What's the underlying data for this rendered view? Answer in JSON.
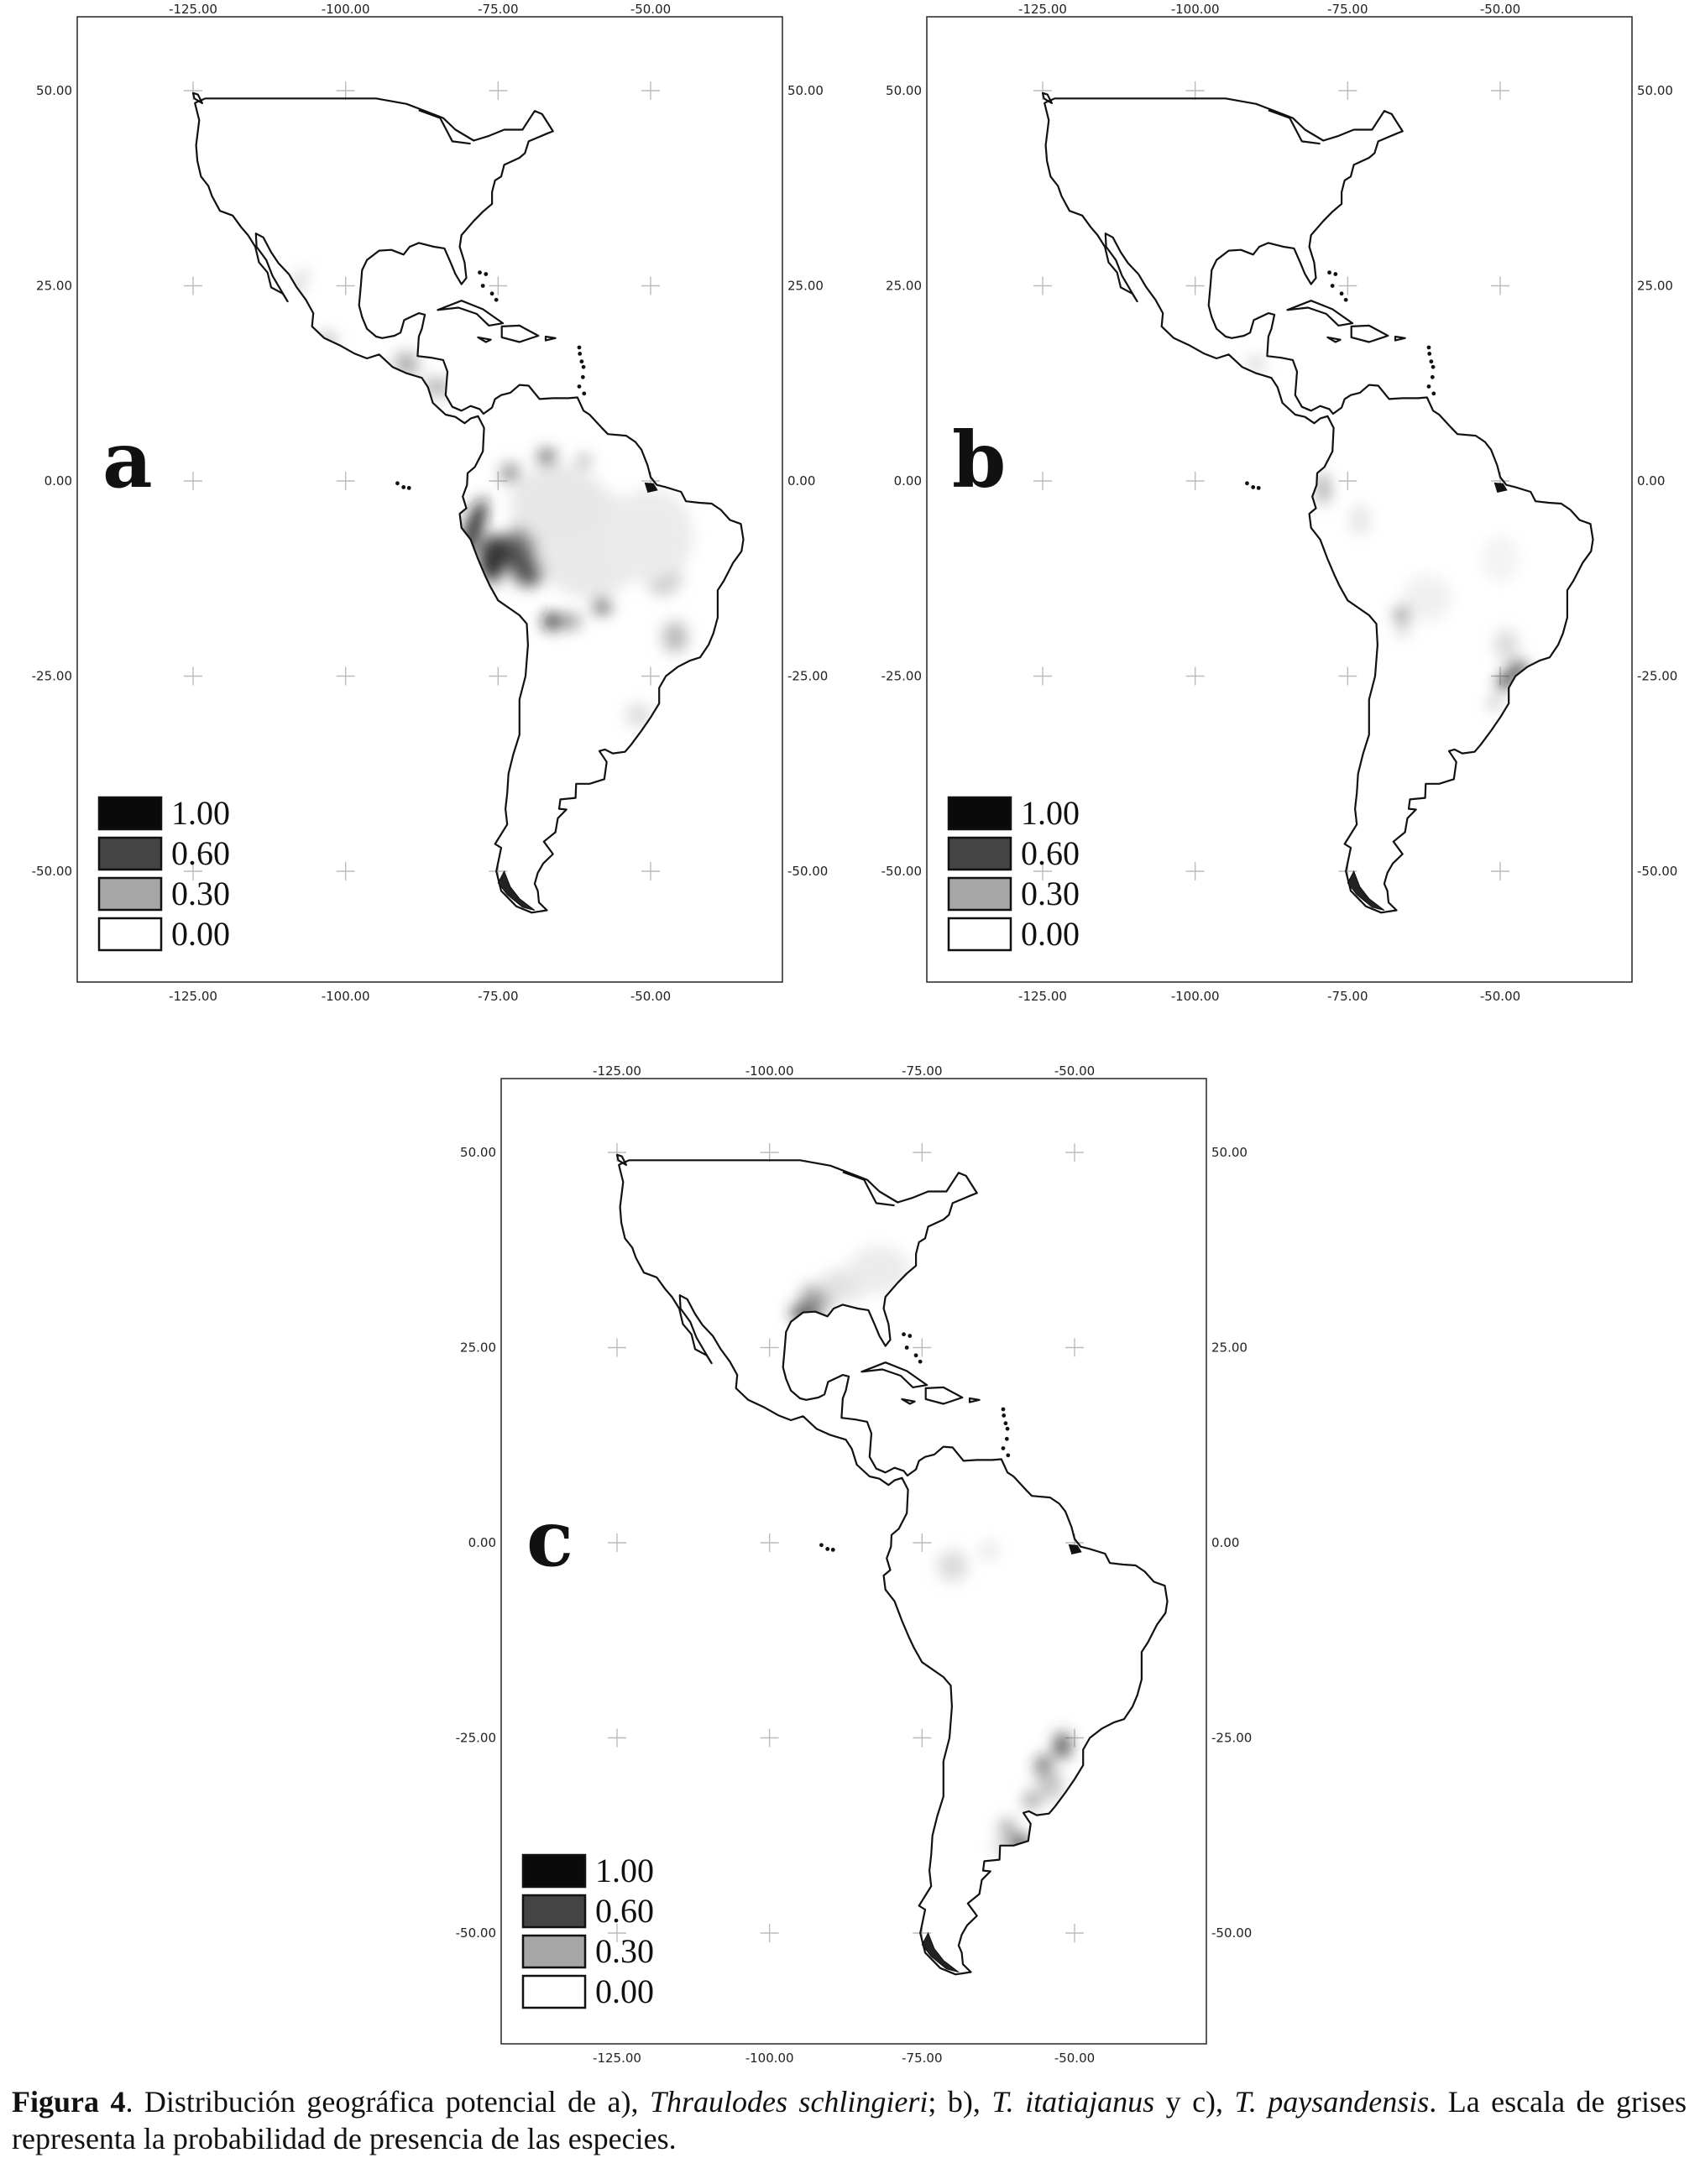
{
  "lon_ticks": [
    "-125.00",
    "-100.00",
    "-75.00",
    "-50.00"
  ],
  "lat_ticks": [
    "50.00",
    "25.00",
    "0.00",
    "-25.00",
    "-50.00"
  ],
  "legend": [
    "1.00",
    "0.60",
    "0.30",
    "0.00"
  ],
  "legend_colors": [
    "#0a0a0a",
    "#444444",
    "#a6a6a6",
    "#ffffff"
  ],
  "panels": [
    {
      "letter": "a"
    },
    {
      "letter": "b"
    },
    {
      "letter": "c"
    }
  ],
  "caption": {
    "label": "Figura 4",
    "t1": ". Distribución geográfica potencial de a), ",
    "sp1": "Thraulodes schlingieri",
    "t2": "; b), ",
    "sp2": "T. itatiajanus",
    "t3": " y c), ",
    "sp3": "T. paysandensis",
    "t4": ". La escala de grises representa la probabilidad de presencia de las especies."
  }
}
